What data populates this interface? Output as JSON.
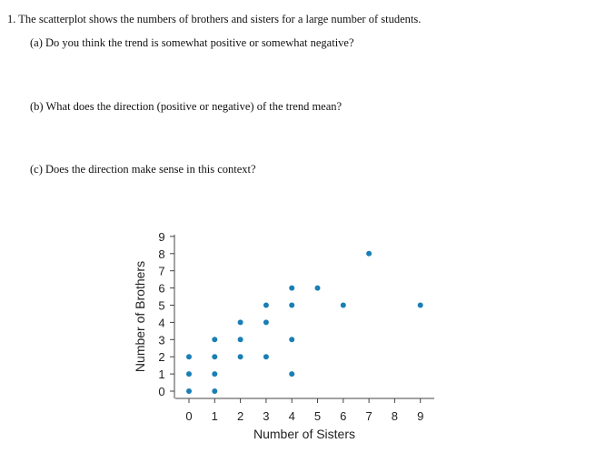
{
  "question": {
    "number": "1.",
    "stem": "The scatterplot shows the numbers of brothers and sisters for a large number of students.",
    "parts": [
      {
        "label": "(a)",
        "text": "Do you think the trend is somewhat positive or somewhat negative?"
      },
      {
        "label": "(b)",
        "text": "What does the direction (positive or negative) of the trend mean?"
      },
      {
        "label": "(c)",
        "text": "Does the direction make sense in this context?"
      }
    ]
  },
  "chart_data": {
    "type": "scatter",
    "title": "",
    "xlabel": "Number of Sisters",
    "ylabel": "Number of Brothers",
    "xlim": [
      0,
      9
    ],
    "ylim": [
      0,
      9
    ],
    "xticks": [
      "0",
      "1",
      "2",
      "3",
      "4",
      "5",
      "6",
      "7",
      "8",
      "9"
    ],
    "yticks": [
      "0",
      "1",
      "2",
      "3",
      "4",
      "5",
      "6",
      "7",
      "8",
      "9"
    ],
    "grid": false,
    "color": "#1a7fb5",
    "points": [
      [
        0,
        0
      ],
      [
        0,
        1
      ],
      [
        0,
        2
      ],
      [
        1,
        0
      ],
      [
        1,
        1
      ],
      [
        1,
        2
      ],
      [
        1,
        3
      ],
      [
        2,
        2
      ],
      [
        2,
        3
      ],
      [
        2,
        4
      ],
      [
        3,
        2
      ],
      [
        3,
        4
      ],
      [
        3,
        5
      ],
      [
        4,
        1
      ],
      [
        4,
        3
      ],
      [
        4,
        5
      ],
      [
        4,
        6
      ],
      [
        5,
        6
      ],
      [
        6,
        5
      ],
      [
        7,
        8
      ],
      [
        9,
        5
      ]
    ]
  }
}
